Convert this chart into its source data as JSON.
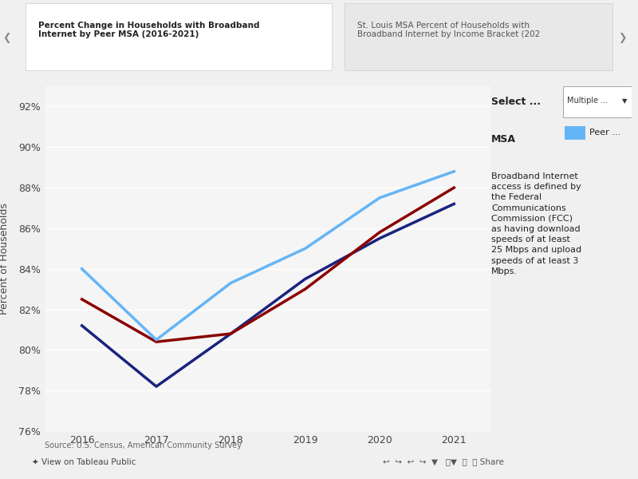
{
  "title_tab1": "Percent Change in Households with Broadband\nInternet by Peer MSA (2016-2021)",
  "title_tab2": "St. Louis MSA Percent of Households with\nBroadband Internet by Income Bracket (202",
  "ylabel": "Percent of Households",
  "years": [
    2016,
    2017,
    2018,
    2019,
    2020,
    2021
  ],
  "line_stlouis": [
    81.2,
    78.2,
    80.8,
    83.5,
    85.5,
    87.2
  ],
  "line_red": [
    82.5,
    80.4,
    80.8,
    83.0,
    85.8,
    88.0
  ],
  "line_peer": [
    84.0,
    80.5,
    83.3,
    85.0,
    87.5,
    88.8
  ],
  "color_stlouis": "#1a237e",
  "color_red": "#8b0000",
  "color_peer": "#64b5f6",
  "ylim_min": 76,
  "ylim_max": 93,
  "yticks": [
    76,
    78,
    80,
    82,
    84,
    86,
    88,
    90,
    92
  ],
  "ytick_labels": [
    "76%",
    "78%",
    "80%",
    "82%",
    "84%",
    "86%",
    "88%",
    "90%",
    "92%"
  ],
  "source_text": "Source: U.S. Census, American Community Survey",
  "annotation_text": "Broadband Internet\naccess is defined by\nthe Federal\nCommunications\nCommission (FCC)\nas having download\nspeeds of at least\n25 Mbps and upload\nspeeds of at least 3\nMbps.",
  "select_label": "Select ...",
  "msa_label": "MSA",
  "peer_label": "Peer ...",
  "background_color": "#f5f5f5",
  "tab_active_color": "#ffffff",
  "tab_inactive_color": "#e0e0e0",
  "linewidth": 2.5
}
